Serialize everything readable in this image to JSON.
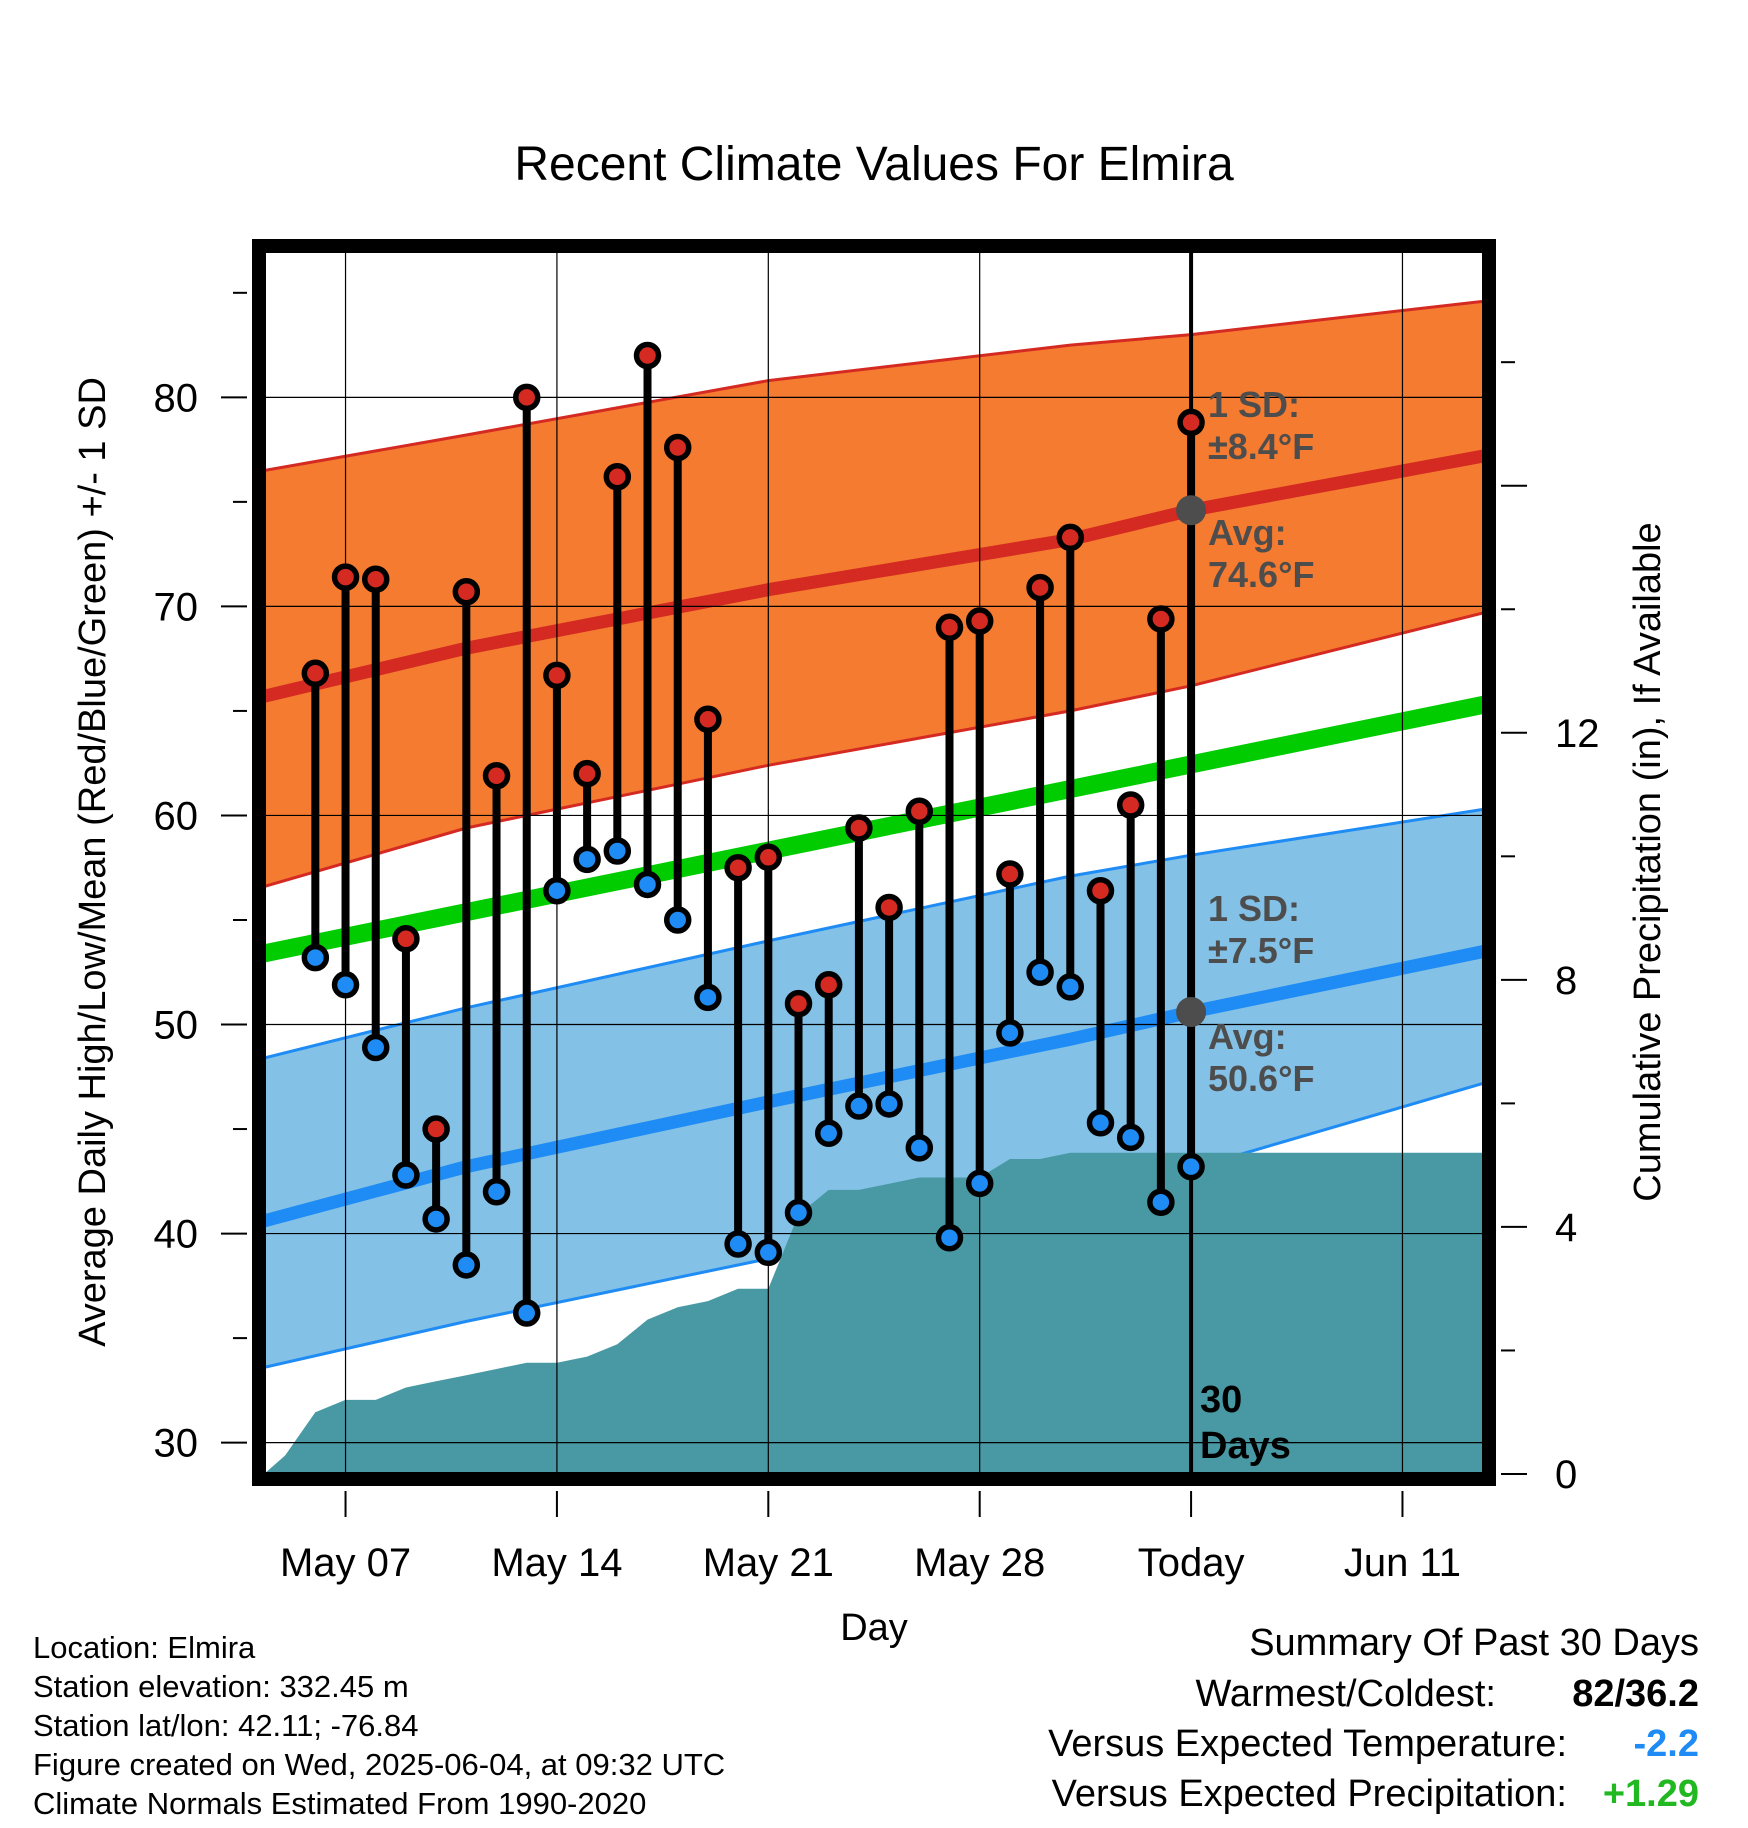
{
  "chart_data": {
    "type": "line",
    "title": "Recent Climate Values For Elmira",
    "xlabel": "Day",
    "ylabel_left": "Average Daily High/Low/Mean (Red/Blue/Green) +/- 1 SD",
    "ylabel_right": "Cumulative Precipitation (in), If Available",
    "x_ticks": [
      "May 07",
      "May 14",
      "May 21",
      "May 28",
      "Today",
      "Jun 11"
    ],
    "x_tick_positions": [
      6,
      13,
      20,
      27,
      34,
      41
    ],
    "xlim": [
      3.3,
      43.7
    ],
    "ylim_left": [
      28.5,
      87
    ],
    "y_ticks_left": [
      "30",
      "40",
      "50",
      "60",
      "70",
      "80"
    ],
    "ylim_right": [
      0,
      19.8
    ],
    "y_ticks_right": [
      "0",
      "4",
      "8",
      "12"
    ],
    "grid": true,
    "today_x": 34,
    "today_label": "30 Days",
    "daily_high": [
      66.8,
      71.4,
      71.3,
      54.1,
      45.0,
      70.7,
      61.9,
      80.0,
      66.7,
      62.0,
      76.2,
      82.0,
      77.6,
      64.6,
      57.5,
      58.0,
      51.0,
      51.9,
      59.4,
      55.6,
      60.2,
      69.0,
      69.3,
      57.2,
      70.9,
      73.3,
      56.4,
      60.5,
      69.4,
      78.8
    ],
    "daily_low": [
      53.2,
      51.9,
      48.9,
      42.8,
      40.7,
      38.5,
      42.0,
      36.2,
      56.4,
      57.9,
      58.3,
      56.7,
      55.0,
      51.3,
      39.5,
      39.1,
      41.0,
      44.8,
      46.1,
      46.2,
      44.1,
      39.8,
      42.4,
      49.6,
      52.5,
      51.8,
      45.3,
      44.6,
      41.5,
      43.2
    ],
    "normal_high": {
      "x": [
        3.3,
        10,
        20,
        30,
        34,
        43.7
      ],
      "values": [
        65.7,
        68.0,
        70.8,
        73.2,
        74.6,
        77.2
      ]
    },
    "normal_high_band": {
      "upper": [
        76.5,
        78.2,
        80.8,
        82.5,
        83.0,
        84.6
      ],
      "lower": [
        56.6,
        59.4,
        62.4,
        65.0,
        66.2,
        69.7
      ]
    },
    "normal_low": {
      "x": [
        3.3,
        10,
        20,
        30,
        34,
        43.7
      ],
      "values": [
        40.6,
        43.2,
        46.3,
        49.3,
        50.6,
        53.5
      ]
    },
    "normal_low_band": {
      "upper": [
        48.4,
        50.8,
        54.0,
        57.1,
        58.1,
        60.3
      ],
      "lower": [
        33.6,
        35.8,
        38.8,
        41.8,
        43.1,
        47.2
      ]
    },
    "normal_mean": {
      "x": [
        3.3,
        43.7
      ],
      "values": [
        53.4,
        65.3
      ]
    },
    "precip_x": [
      3.3,
      4,
      5,
      6,
      7,
      8,
      9,
      10,
      11,
      12,
      13,
      14,
      15,
      16,
      17,
      18,
      19,
      20,
      21,
      22,
      23,
      24,
      25,
      26,
      27,
      28,
      29,
      30,
      31,
      32,
      33,
      34,
      43.7
    ],
    "precip_cum": [
      0.0,
      0.3,
      1.0,
      1.2,
      1.2,
      1.4,
      1.5,
      1.6,
      1.7,
      1.8,
      1.8,
      1.9,
      2.1,
      2.5,
      2.7,
      2.8,
      3.0,
      3.0,
      4.2,
      4.6,
      4.6,
      4.7,
      4.8,
      4.8,
      4.8,
      5.1,
      5.1,
      5.2,
      5.2,
      5.2,
      5.2,
      5.2,
      5.2
    ],
    "annotations": {
      "high_sd_label": "1 SD:",
      "high_sd_value": "±8.4°F",
      "high_avg_label": "Avg:",
      "high_avg_value": "74.6°F",
      "low_sd_label": "1 SD:",
      "low_sd_value": "±7.5°F",
      "low_avg_label": "Avg:",
      "low_avg_value": "50.6°F"
    },
    "colors": {
      "high_band": "#f47b30",
      "high_line": "#d42a22",
      "low_band": "#84c1e6",
      "low_line": "#1e8cf4",
      "mean_line": "#00cc00",
      "precip": "#4899a3",
      "high_marker": "#d42a22",
      "low_marker": "#1e8cf4",
      "annotation": "#4d4d4d"
    }
  },
  "footer": {
    "location": "Location: Elmira",
    "elevation": "Station elevation: 332.45 m",
    "latlon": "Station lat/lon: 42.11; -76.84",
    "created": "Figure created on Wed, 2025-06-04, at 09:32 UTC",
    "normals": "Climate Normals Estimated From 1990-2020"
  },
  "summary": {
    "title": "Summary Of Past 30 Days",
    "warm_cold_label": "Warmest/Coldest:",
    "warm_cold_value": "82/36.2",
    "temp_label": "Versus Expected Temperature:",
    "temp_value": "-2.2",
    "temp_color": "#1e8cf4",
    "precip_label": "Versus Expected Precipitation:",
    "precip_value": "+1.29",
    "precip_color": "#22b822"
  }
}
